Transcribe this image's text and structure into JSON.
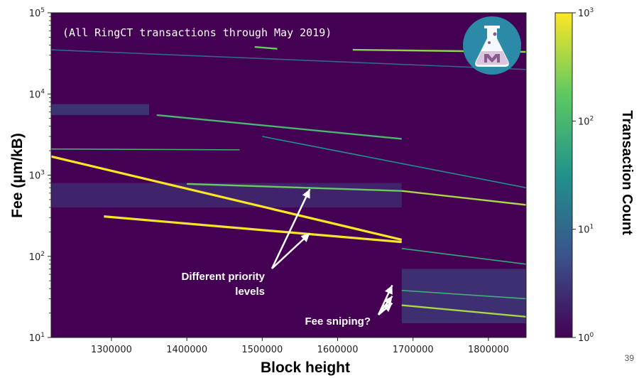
{
  "chart_data": {
    "type": "heatmap",
    "title": "",
    "subtitle": "(All RingCT transactions through May 2019)",
    "xlabel": "Block height",
    "ylabel": "Fee (µm/kB)",
    "x_ticks": [
      "1300000",
      "1400000",
      "1500000",
      "1600000",
      "1700000",
      "1800000"
    ],
    "x_tick_values": [
      1300000,
      1400000,
      1500000,
      1600000,
      1700000,
      1800000
    ],
    "xlim": [
      1220000,
      1850000
    ],
    "y_scale": "log",
    "ylim": [
      10,
      100000
    ],
    "y_tick_values": [
      10,
      100,
      1000,
      10000,
      100000
    ],
    "y_ticks": [
      {
        "base": "10",
        "exp": "1"
      },
      {
        "base": "10",
        "exp": "2"
      },
      {
        "base": "10",
        "exp": "3"
      },
      {
        "base": "10",
        "exp": "4"
      },
      {
        "base": "10",
        "exp": "5"
      }
    ],
    "colorbar": {
      "label": "Transaction Count",
      "scale": "log",
      "range": [
        1,
        1000
      ],
      "ticks": [
        {
          "base": "10",
          "exp": "0"
        },
        {
          "base": "10",
          "exp": "1"
        },
        {
          "base": "10",
          "exp": "2"
        },
        {
          "base": "10",
          "exp": "3"
        }
      ]
    },
    "colormap": "viridis",
    "bands": [
      {
        "x": [
          1220000,
          1685000
        ],
        "y": [
          1700,
          160
        ],
        "count": 1000
      },
      {
        "x": [
          1290000,
          1685000
        ],
        "y": [
          310,
          150
        ],
        "count": 900
      },
      {
        "x": [
          1400000,
          1685000
        ],
        "y": [
          780,
          640
        ],
        "count": 200
      },
      {
        "x": [
          1685000,
          1850000
        ],
        "y": [
          640,
          430
        ],
        "count": 400
      },
      {
        "x": [
          1360000,
          1685000
        ],
        "y": [
          5500,
          2800
        ],
        "count": 100
      },
      {
        "x": [
          1500000,
          1850000
        ],
        "y": [
          3000,
          700
        ],
        "count": 30
      },
      {
        "x": [
          1685000,
          1850000
        ],
        "y": [
          125,
          80
        ],
        "count": 60
      },
      {
        "x": [
          1685000,
          1850000
        ],
        "y": [
          25,
          18
        ],
        "count": 400
      },
      {
        "x": [
          1685000,
          1850000
        ],
        "y": [
          38,
          30
        ],
        "count": 80
      },
      {
        "x": [
          1220000,
          1470000
        ],
        "y": [
          2100,
          2050
        ],
        "count": 80
      },
      {
        "x": [
          1220000,
          1850000
        ],
        "y": [
          35000,
          20000
        ],
        "count": 10
      },
      {
        "x": [
          1490000,
          1520000
        ],
        "y": [
          38000,
          36000
        ],
        "count": 200
      },
      {
        "x": [
          1620000,
          1850000
        ],
        "y": [
          35000,
          33000
        ],
        "count": 300
      }
    ],
    "regions": [
      {
        "x": [
          1220000,
          1350000
        ],
        "y": [
          5500,
          7500
        ],
        "count": 8
      },
      {
        "x": [
          1220000,
          1685000
        ],
        "y": [
          400,
          800
        ],
        "count": 4
      },
      {
        "x": [
          1685000,
          1850000
        ],
        "y": [
          15,
          70
        ],
        "count": 6
      }
    ],
    "annotations": [
      {
        "text": "Different priority",
        "points_to": [
          [
            1565000,
            700
          ],
          [
            1565000,
            200
          ]
        ]
      },
      {
        "text": "levels"
      },
      {
        "text": "Fee sniping?",
        "points_to": [
          [
            1680000,
            45
          ],
          [
            1680000,
            33
          ],
          [
            1680000,
            27
          ]
        ]
      }
    ]
  },
  "page_number": "39",
  "colors": {
    "background": "#440154",
    "accent_yellow": "#fde725",
    "logo_circle": "#2a8aa8"
  },
  "icons": {
    "logo": "flask-logo-icon"
  }
}
